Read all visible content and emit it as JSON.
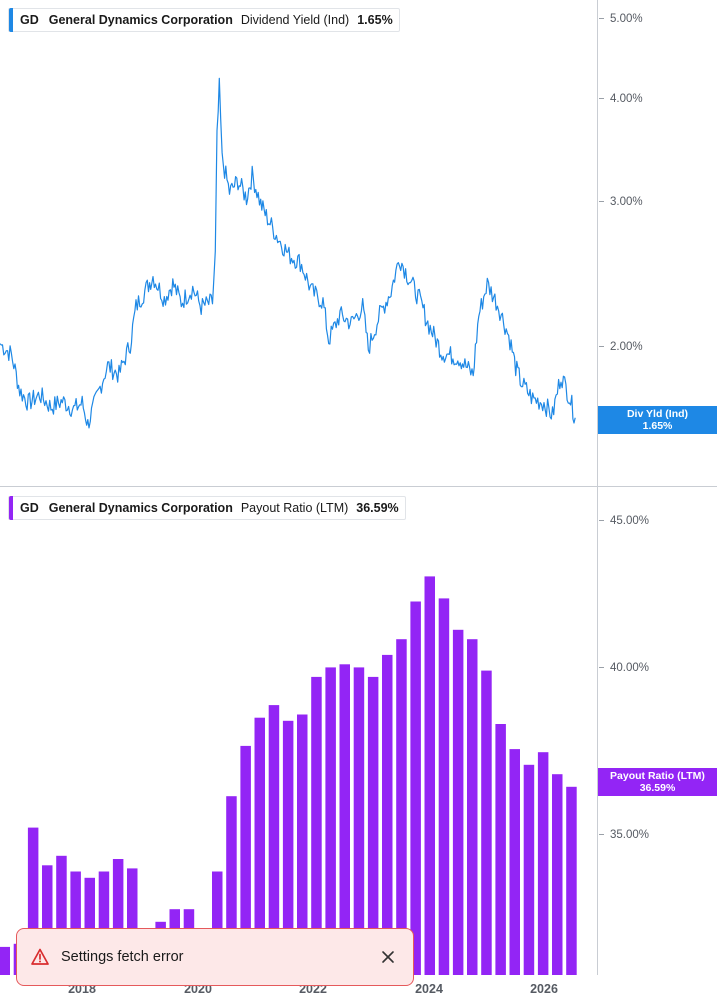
{
  "top_legend": {
    "ticker": "GD",
    "company": "General Dynamics Corporation",
    "metric": "Dividend Yield (Ind)",
    "value": "1.65%",
    "color": "#1e88e5"
  },
  "bottom_legend": {
    "ticker": "GD",
    "company": "General Dynamics Corporation",
    "metric": "Payout Ratio (LTM)",
    "value": "36.59%",
    "color": "#9325f5"
  },
  "top_tag": {
    "line1": "Div Yld (Ind)",
    "line2": "1.65%"
  },
  "bottom_tag": {
    "line1": "Payout Ratio (LTM)",
    "line2": "36.59%"
  },
  "top_axis_labels": [
    "5.00%",
    "4.00%",
    "3.00%",
    "2.00%"
  ],
  "bottom_axis_labels": [
    "45.00%",
    "40.00%",
    "35.00%"
  ],
  "x_axis_labels": [
    "2018",
    "2020",
    "2022",
    "2024",
    "2026"
  ],
  "toast": {
    "message": "Settings fetch error"
  },
  "chart_data": [
    {
      "type": "line",
      "title": "GD General Dynamics Corporation Dividend Yield (Ind)",
      "scale": "log",
      "ylim": [
        1.5,
        5.2
      ],
      "xlim": [
        2016.4,
        2026.7
      ],
      "y_ticks": [
        5.0,
        4.0,
        3.0,
        2.0
      ],
      "last_value": 1.65,
      "color": "#1e88e5",
      "series": [
        {
          "name": "Dividend Yield (Ind)",
          "points": [
            [
              2016.4,
              2.03
            ],
            [
              2016.6,
              1.97
            ],
            [
              2016.75,
              1.78
            ],
            [
              2016.9,
              1.72
            ],
            [
              2017.1,
              1.76
            ],
            [
              2017.3,
              1.7
            ],
            [
              2017.5,
              1.73
            ],
            [
              2017.7,
              1.69
            ],
            [
              2017.85,
              1.72
            ],
            [
              2017.95,
              1.62
            ],
            [
              2018.1,
              1.74
            ],
            [
              2018.3,
              1.91
            ],
            [
              2018.5,
              1.86
            ],
            [
              2018.7,
              2.03
            ],
            [
              2018.8,
              2.25
            ],
            [
              2019.0,
              2.38
            ],
            [
              2019.1,
              2.45
            ],
            [
              2019.3,
              2.3
            ],
            [
              2019.45,
              2.4
            ],
            [
              2019.6,
              2.28
            ],
            [
              2019.8,
              2.37
            ],
            [
              2019.95,
              2.25
            ],
            [
              2020.15,
              2.28
            ],
            [
              2020.2,
              2.6
            ],
            [
              2020.23,
              3.6
            ],
            [
              2020.27,
              4.15
            ],
            [
              2020.32,
              3.4
            ],
            [
              2020.45,
              3.1
            ],
            [
              2020.6,
              3.2
            ],
            [
              2020.75,
              3.05
            ],
            [
              2020.85,
              3.25
            ],
            [
              2021.0,
              3.0
            ],
            [
              2021.1,
              2.9
            ],
            [
              2021.3,
              2.73
            ],
            [
              2021.5,
              2.6
            ],
            [
              2021.7,
              2.55
            ],
            [
              2021.9,
              2.35
            ],
            [
              2022.1,
              2.28
            ],
            [
              2022.2,
              2.05
            ],
            [
              2022.4,
              2.2
            ],
            [
              2022.6,
              2.15
            ],
            [
              2022.8,
              2.25
            ],
            [
              2022.9,
              2.0
            ],
            [
              2023.1,
              2.2
            ],
            [
              2023.3,
              2.35
            ],
            [
              2023.45,
              2.58
            ],
            [
              2023.6,
              2.45
            ],
            [
              2023.8,
              2.3
            ],
            [
              2023.95,
              2.15
            ],
            [
              2024.2,
              1.98
            ],
            [
              2024.5,
              1.95
            ],
            [
              2024.75,
              1.86
            ],
            [
              2024.85,
              2.2
            ],
            [
              2025.0,
              2.4
            ],
            [
              2025.2,
              2.25
            ],
            [
              2025.4,
              2.05
            ],
            [
              2025.5,
              1.9
            ],
            [
              2025.6,
              1.82
            ],
            [
              2025.8,
              1.74
            ],
            [
              2026.0,
              1.72
            ],
            [
              2026.15,
              1.66
            ],
            [
              2026.3,
              1.86
            ],
            [
              2026.45,
              1.75
            ],
            [
              2026.55,
              1.65
            ]
          ]
        }
      ]
    },
    {
      "type": "bar",
      "title": "GD General Dynamics Corporation Payout Ratio (LTM)",
      "ylim": [
        31.0,
        46.5
      ],
      "xlim": [
        2016.4,
        2026.7
      ],
      "y_ticks": [
        45.0,
        40.0,
        35.0
      ],
      "last_value": 36.59,
      "color": "#9325f5",
      "series": [
        {
          "name": "Payout Ratio (LTM)",
          "x": [
            2016.48,
            2016.73,
            2016.98,
            2017.23,
            2017.48,
            2017.73,
            2017.98,
            2018.23,
            2018.48,
            2018.73,
            2019.23,
            2019.48,
            2019.73,
            2019.98,
            2020.23,
            2020.48,
            2020.73,
            2020.98,
            2021.23,
            2021.48,
            2021.73,
            2021.98,
            2022.23,
            2022.48,
            2022.73,
            2022.98,
            2023.23,
            2023.48,
            2023.73,
            2023.98,
            2024.23,
            2024.48,
            2024.73,
            2024.98,
            2025.23,
            2025.48,
            2025.73,
            2025.98,
            2026.23,
            2026.48
          ],
          "values": [
            31.5,
            31.6,
            35.3,
            34.1,
            34.4,
            33.9,
            33.7,
            33.9,
            34.3,
            34.0,
            32.3,
            32.7,
            32.7,
            32.0,
            33.9,
            36.3,
            37.9,
            38.8,
            39.2,
            38.7,
            38.9,
            40.1,
            40.4,
            40.5,
            40.4,
            40.1,
            40.8,
            41.3,
            42.5,
            43.3,
            42.6,
            41.6,
            41.3,
            40.3,
            38.6,
            37.8,
            37.3,
            37.7,
            37.0,
            36.6
          ]
        }
      ]
    }
  ]
}
